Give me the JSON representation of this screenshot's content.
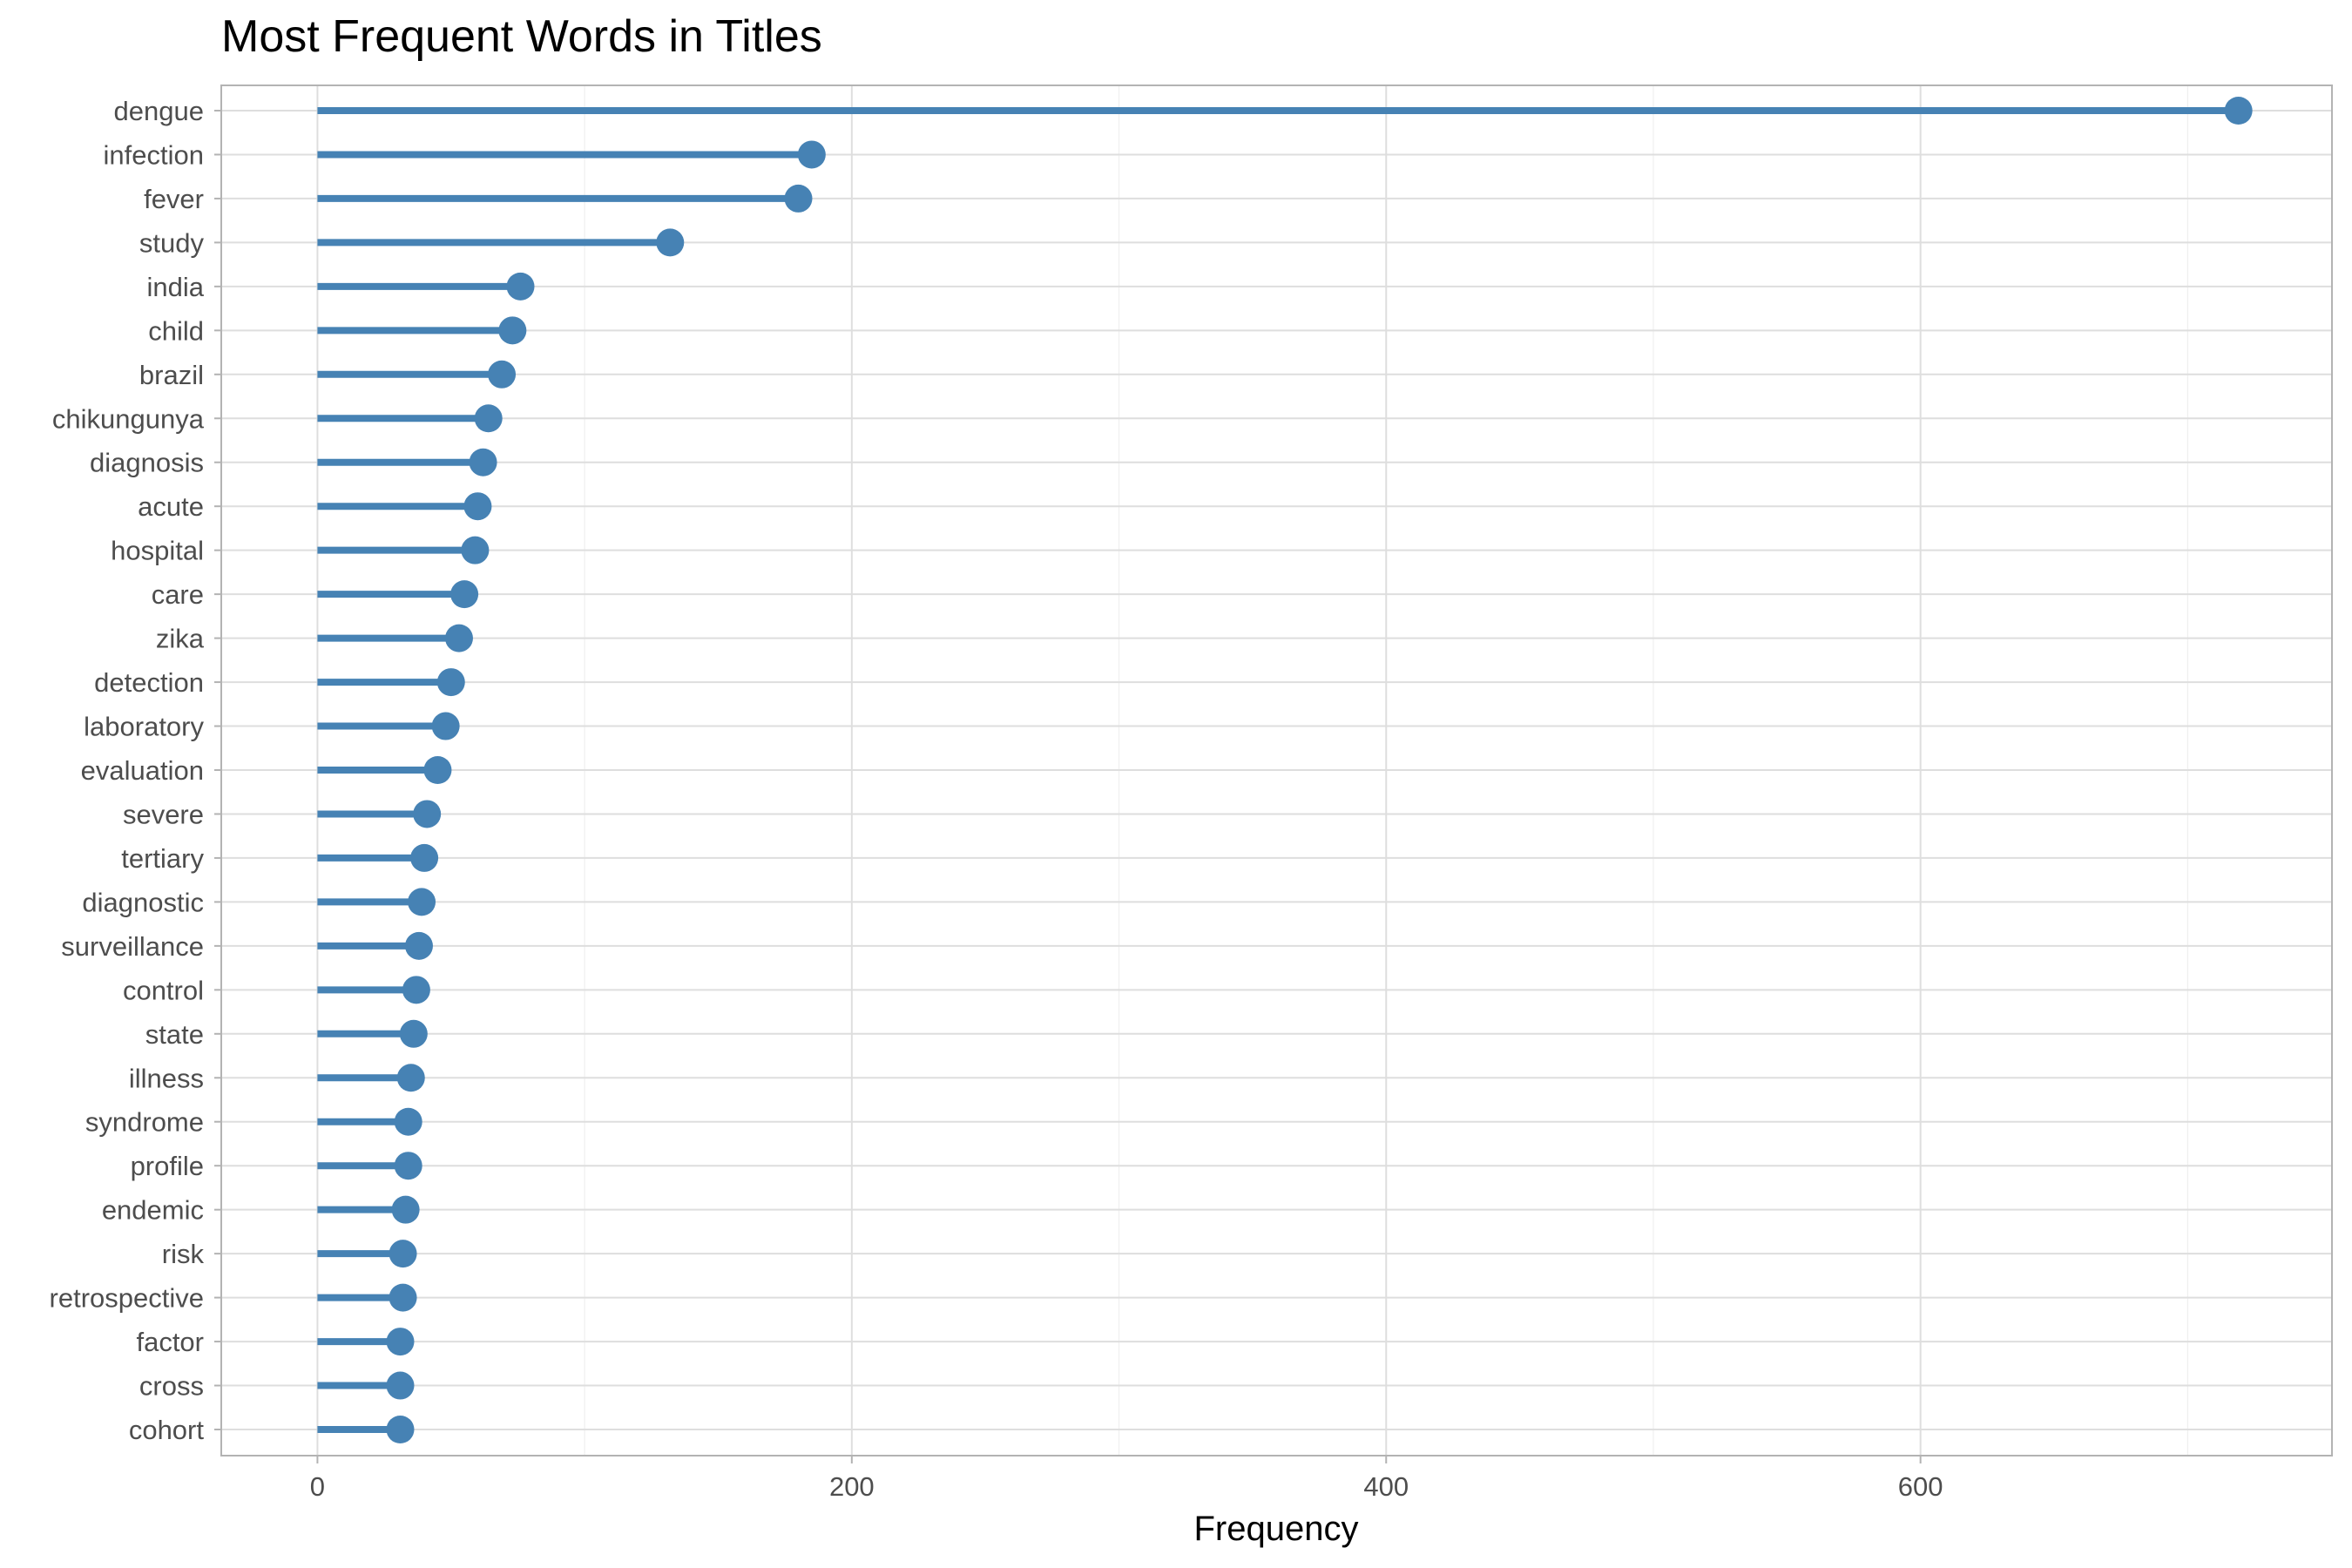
{
  "chart_data": {
    "type": "lollipop",
    "title": "Most Frequent Words in Titles",
    "xlabel": "Frequency",
    "ylabel": "",
    "xlim": [
      -36,
      754
    ],
    "x_ticks": [
      0,
      200,
      400,
      600
    ],
    "grid": true,
    "legend": "none",
    "color": "#4682b4",
    "categories": [
      "dengue",
      "infection",
      "fever",
      "study",
      "india",
      "child",
      "brazil",
      "chikungunya",
      "diagnosis",
      "acute",
      "hospital",
      "care",
      "zika",
      "detection",
      "laboratory",
      "evaluation",
      "severe",
      "tertiary",
      "diagnostic",
      "surveillance",
      "control",
      "state",
      "illness",
      "syndrome",
      "profile",
      "endemic",
      "risk",
      "retrospective",
      "factor",
      "cross",
      "cohort"
    ],
    "values": [
      719,
      185,
      180,
      132,
      76,
      73,
      69,
      64,
      62,
      60,
      59,
      55,
      53,
      50,
      48,
      45,
      41,
      40,
      39,
      38,
      37,
      36,
      35,
      34,
      34,
      33,
      32,
      32,
      31,
      31,
      31
    ]
  }
}
